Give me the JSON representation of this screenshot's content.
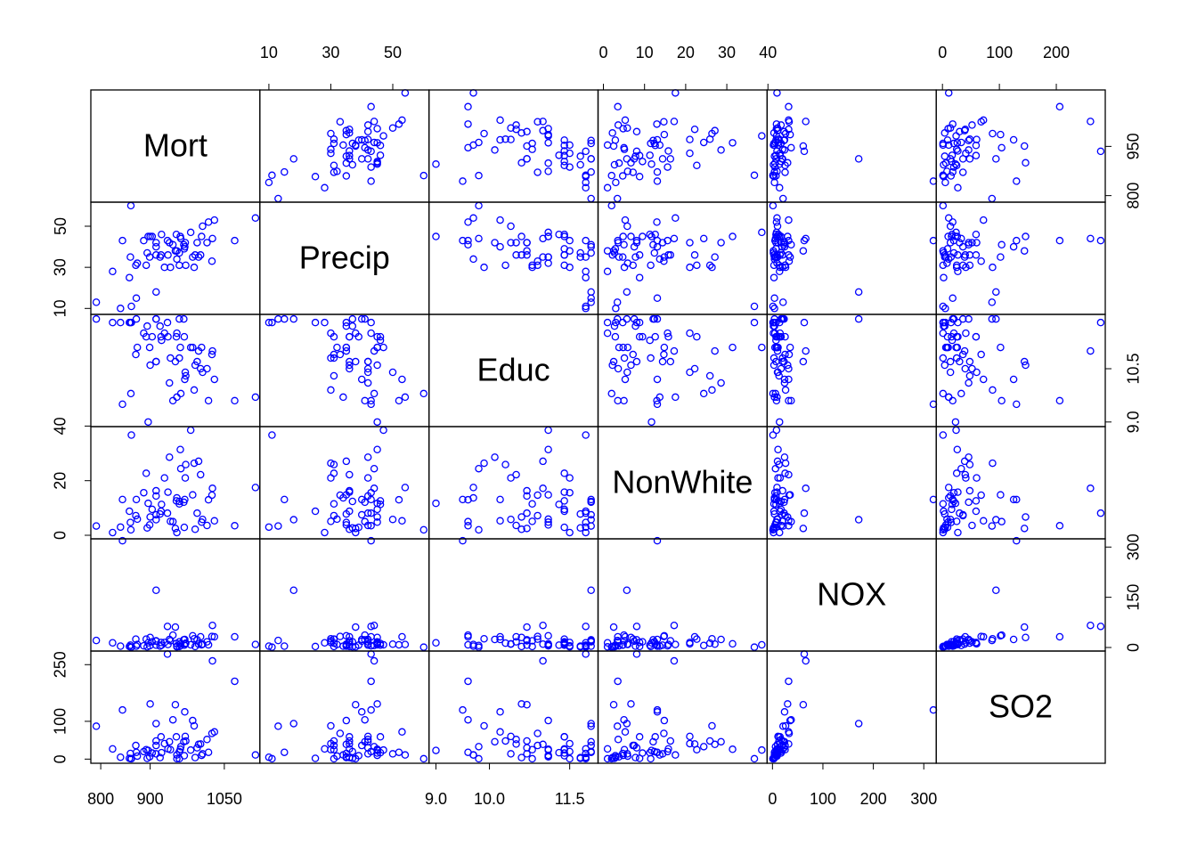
{
  "chart_data": {
    "type": "scatter-matrix",
    "color": "#0000ff",
    "variables": [
      {
        "name": "Mort",
        "lim": [
          780,
          1122
        ],
        "xticks": [
          800,
          900,
          1050
        ],
        "yticks": [
          800,
          950
        ],
        "values": [
          922,
          998,
          962,
          982,
          1071,
          1030,
          935,
          900,
          1002,
          912,
          1018,
          1025,
          970,
          986,
          959,
          860,
          936,
          872,
          959,
          941,
          892,
          871,
          971,
          887,
          953,
          969,
          920,
          844,
          862,
          989,
          1006,
          861,
          929,
          858,
          961,
          923,
          1113,
          995,
          1015,
          991,
          894,
          939,
          946,
          1026,
          874,
          954,
          840,
          912,
          791,
          899,
          904,
          951,
          972,
          912,
          968,
          824,
          1004,
          896,
          912,
          954
        ]
      },
      {
        "name": "Precip",
        "lim": [
          7.1,
          61.7
        ],
        "xticks": [
          10,
          30,
          50
        ],
        "yticks": [
          10,
          30,
          50
        ],
        "values": [
          36,
          35,
          44,
          47,
          43,
          53,
          43,
          45,
          36,
          36,
          52,
          33,
          40,
          35,
          37,
          35,
          36,
          15,
          31,
          30,
          31,
          31,
          42,
          43,
          46,
          39,
          35,
          43,
          11,
          30,
          50,
          60,
          30,
          25,
          45,
          46,
          54,
          42,
          42,
          36,
          37,
          42,
          41,
          44,
          32,
          34,
          10,
          18,
          13,
          35,
          45,
          38,
          31,
          40,
          41,
          28,
          45,
          45,
          42,
          38
        ]
      },
      {
        "name": "Educ",
        "lim": [
          8.87,
          12.03
        ],
        "xticks": [
          {
            "value": 9,
            "label": "9.0"
          },
          {
            "value": 10,
            "label": "10.0"
          },
          11.5
        ],
        "yticks": [
          {
            "value": 9,
            "label": "9.0"
          },
          10.5
        ],
        "values": [
          11.4,
          11.0,
          9.8,
          11.1,
          9.6,
          10.2,
          11.8,
          10.6,
          10.5,
          10.7,
          9.6,
          10.9,
          10.2,
          11.1,
          11.9,
          11.8,
          11.4,
          11.9,
          10.8,
          10.8,
          11.4,
          10.9,
          10.4,
          11.5,
          11.4,
          11.4,
          11.7,
          9.5,
          11.8,
          9.9,
          10.4,
          9.8,
          11.5,
          11.8,
          11.1,
          11.3,
          9.7,
          10.7,
          10.5,
          10.6,
          11.7,
          10.1,
          9.6,
          11.0,
          11.1,
          9.7,
          11.8,
          11.9,
          11.9,
          11.1,
          11.4,
          10.7,
          10.3,
          11.9,
          11.9,
          11.8,
          11.1,
          9.0,
          10.7,
          11.5
        ]
      },
      {
        "name": "NonWhite",
        "lim": [
          -1.3,
          39.8
        ],
        "xticks": [
          0,
          10,
          20,
          30,
          40
        ],
        "yticks": [
          0,
          20,
          40
        ],
        "values": [
          8.8,
          27.1,
          24.4,
          38.5,
          3.5,
          5.3,
          8.1,
          6.7,
          22.2,
          16.3,
          13.0,
          14.7,
          13.1,
          14.8,
          12.4,
          4.7,
          15.8,
          13.1,
          11.5,
          5.1,
          22.7,
          7.2,
          21.0,
          15.6,
          12.6,
          2.9,
          7.8,
          13.1,
          36.7,
          26.4,
          5.8,
          2.0,
          21.0,
          8.8,
          31.4,
          11.3,
          17.5,
          8.1,
          3.6,
          2.2,
          2.7,
          28.6,
          5.0,
          17.2,
          5.9,
          13.7,
          3.0,
          5.7,
          3.4,
          3.8,
          9.5,
          2.5,
          25.9,
          7.5,
          12.1,
          1.0,
          4.8,
          11.7,
          14.4,
          1.0
        ]
      },
      {
        "name": "NOX",
        "lim": [
          -10.6,
          324.6
        ],
        "xticks": [
          0,
          100,
          200,
          300
        ],
        "yticks": [
          0,
          150,
          300
        ],
        "values": [
          15,
          10,
          6,
          8,
          32,
          32,
          63,
          30,
          32,
          20,
          8,
          33,
          24,
          35,
          17,
          7,
          9,
          4,
          3,
          20,
          25,
          25,
          11,
          5,
          12,
          7,
          4,
          319,
          1,
          26,
          10,
          1,
          15,
          3,
          11,
          7,
          9,
          23,
          17,
          3,
          2,
          24,
          37,
          66,
          9,
          4,
          4,
          171,
          21,
          5,
          17,
          61,
          13,
          19,
          23,
          14,
          8,
          14,
          7,
          2
        ]
      },
      {
        "name": "SO2",
        "lim": [
          -11,
          286
        ],
        "xticks": [
          0,
          100,
          200
        ],
        "yticks": [
          0,
          100,
          250
        ],
        "values": [
          59,
          39,
          33,
          24,
          206,
          72,
          278,
          146,
          40,
          48,
          18,
          68,
          125,
          102,
          20,
          15,
          27,
          18,
          1,
          25,
          25,
          36,
          60,
          20,
          59,
          9,
          4,
          130,
          1,
          88,
          14,
          1,
          41,
          2,
          26,
          17,
          11,
          30,
          52,
          4,
          2,
          46,
          104,
          260,
          8,
          11,
          5,
          94,
          87,
          6,
          16,
          144,
          48,
          36,
          46,
          27,
          10,
          23,
          14,
          1
        ]
      }
    ]
  }
}
